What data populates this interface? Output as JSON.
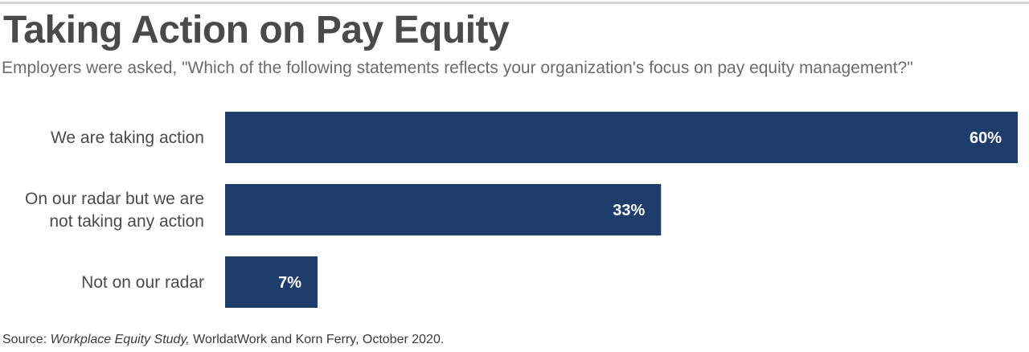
{
  "title": "Taking Action on Pay Equity",
  "subtitle": "Employers were asked, \"Which of the following statements reflects your organization's focus on pay equity management?\"",
  "source": {
    "prefix": "Source: ",
    "study": "Workplace Equity Study,",
    "rest": " WorldatWork and Korn Ferry, October 2020."
  },
  "colors": {
    "bar": "#1f3d6b",
    "bar_label": "#ffffff",
    "category_label": "#4a4a4a"
  },
  "chart_data": {
    "type": "bar",
    "orientation": "horizontal",
    "categories": [
      [
        "We are taking action"
      ],
      [
        "On our radar but we are",
        "not taking any action"
      ],
      [
        "Not on our radar"
      ]
    ],
    "values": [
      60,
      33,
      7
    ],
    "data_labels": [
      "60%",
      "33%",
      "7%"
    ],
    "xlim": [
      0,
      60
    ],
    "grid": false,
    "legend": "none"
  }
}
